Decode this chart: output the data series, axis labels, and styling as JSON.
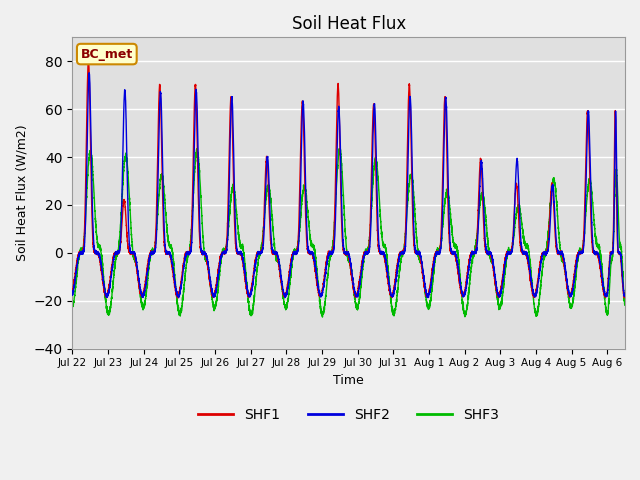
{
  "title": "Soil Heat Flux",
  "xlabel": "Time",
  "ylabel": "Soil Heat Flux (W/m2)",
  "ylim": [
    -40,
    90
  ],
  "yticks": [
    -40,
    -20,
    0,
    20,
    40,
    60,
    80
  ],
  "num_days": 15.5,
  "x_tick_labels": [
    "Jul 22",
    "Jul 23",
    "Jul 24",
    "Jul 25",
    "Jul 26",
    "Jul 27",
    "Jul 28",
    "Jul 29",
    "Jul 30",
    "Jul 31",
    "Aug 1",
    "Aug 2",
    "Aug 3",
    "Aug 4",
    "Aug 5",
    "Aug 6"
  ],
  "colors": {
    "SHF1": "#dd0000",
    "SHF2": "#0000dd",
    "SHF3": "#00bb00"
  },
  "bg_color": "#e0e0e0",
  "fig_color": "#f0f0f0",
  "annotation_text": "BC_met",
  "annotation_facecolor": "#ffffcc",
  "annotation_edgecolor": "#cc8800",
  "annotation_textcolor": "#8b0000",
  "peak_amps1": [
    80,
    22,
    70,
    70,
    65,
    40,
    63,
    70,
    62,
    70,
    65,
    39,
    29,
    29,
    59,
    59
  ],
  "peak_amps2": [
    75,
    68,
    67,
    68,
    65,
    40,
    63,
    61,
    62,
    65,
    65,
    38,
    39,
    28,
    59,
    59
  ],
  "peak_amps3": [
    45,
    38,
    35,
    40,
    30,
    25,
    30,
    40,
    42,
    30,
    28,
    22,
    22,
    28,
    33,
    35
  ],
  "night_amp12": -18,
  "night_amp3": -24,
  "sharpness12": 8,
  "sharpness3": 2.5,
  "linewidth": 1.0
}
